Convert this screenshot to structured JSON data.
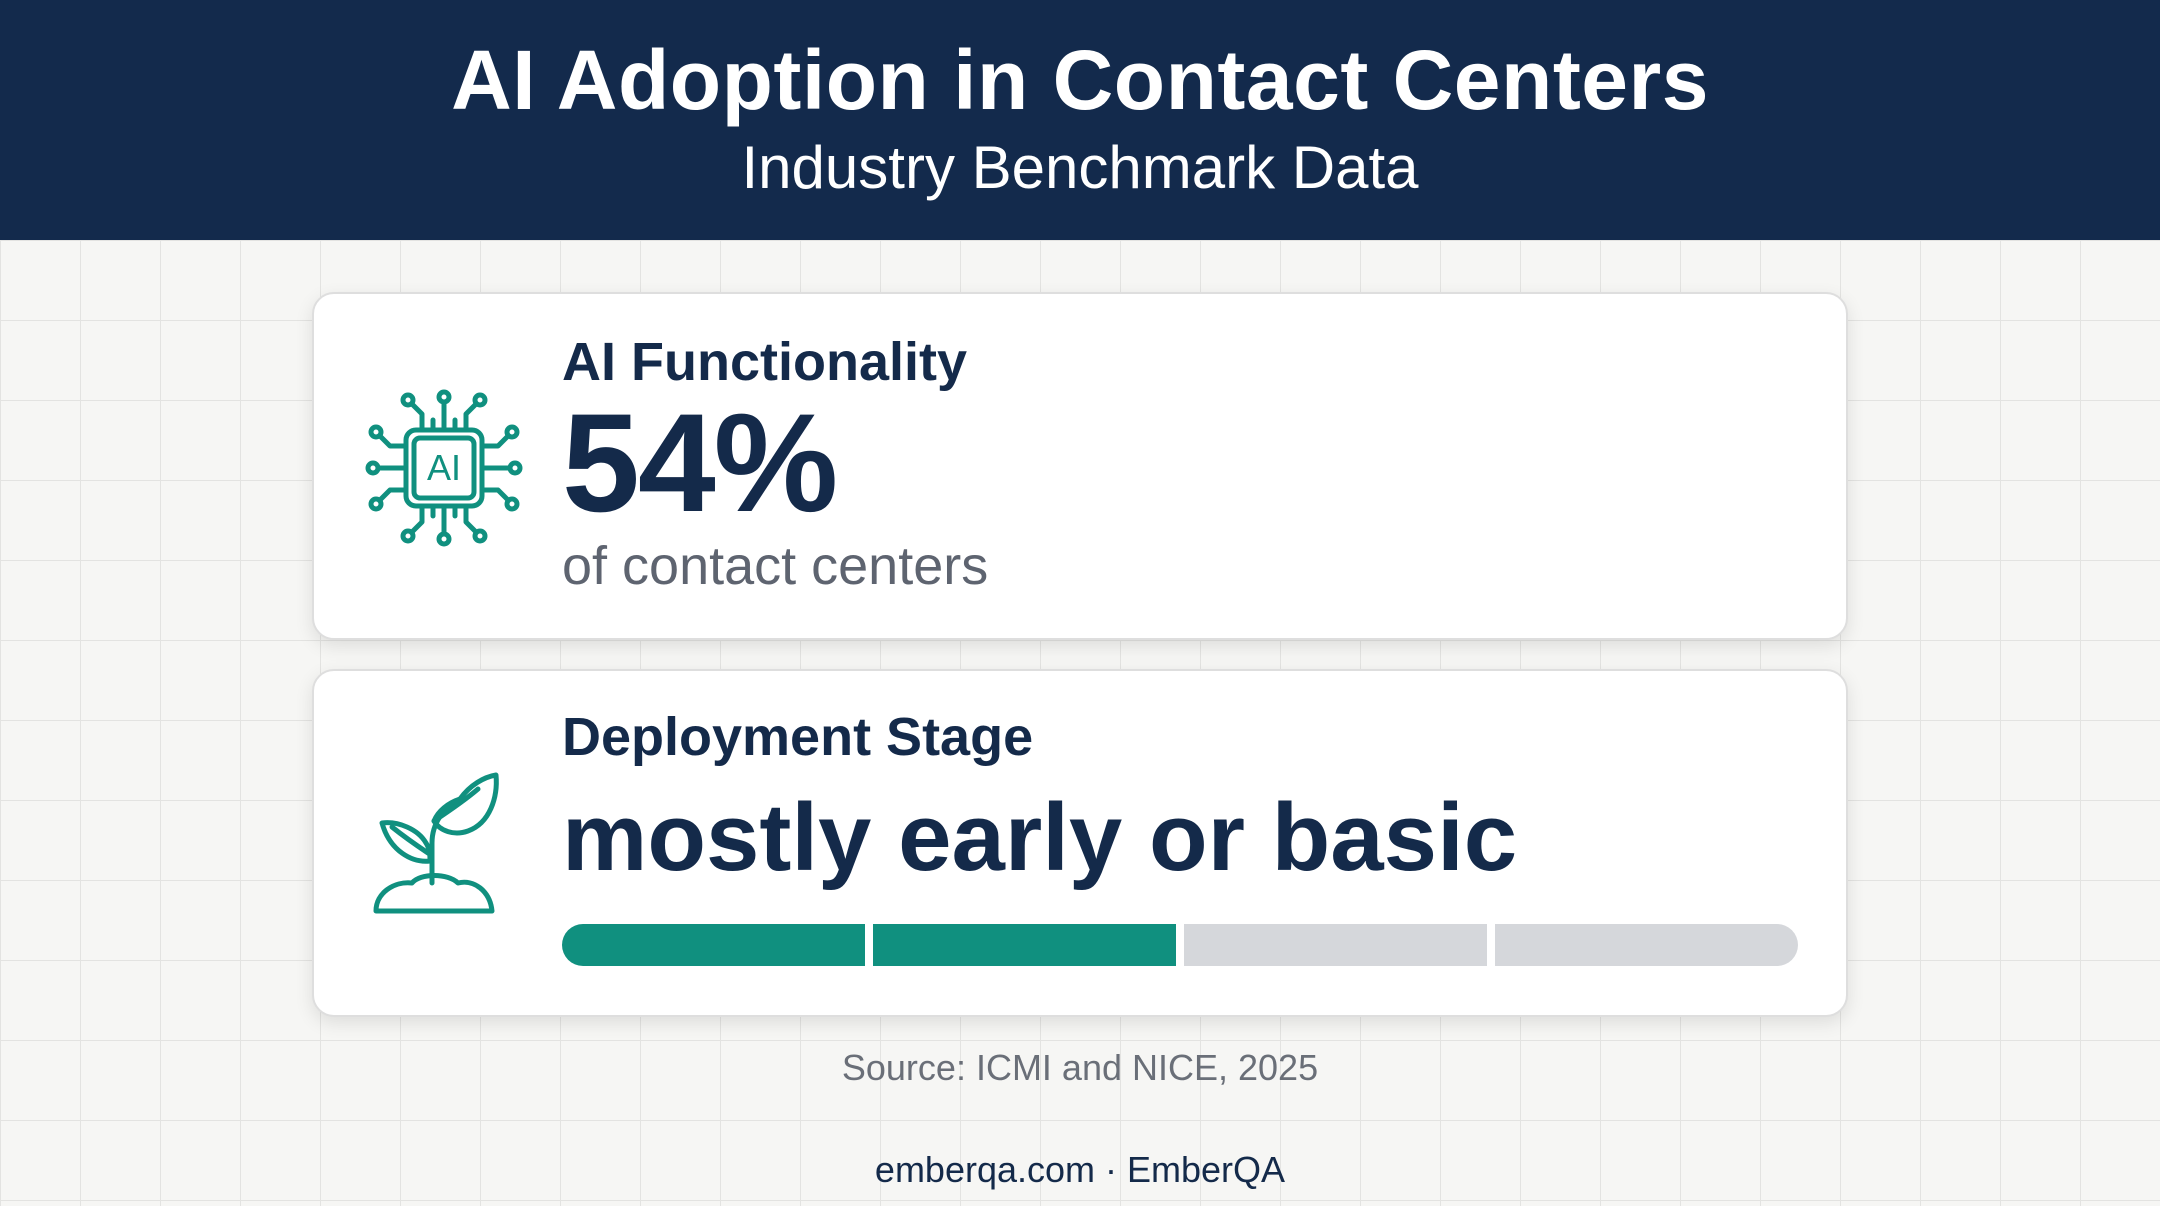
{
  "header": {
    "title": "AI Adoption in Contact Centers",
    "subtitle": "Industry Benchmark Data"
  },
  "cards": [
    {
      "icon": "ai-chip-icon",
      "label": "AI Functionality",
      "value": "54%",
      "caption": "of contact centers"
    },
    {
      "icon": "sprout-icon",
      "label": "Deployment Stage",
      "value": "mostly early or basic",
      "progress": {
        "filled_segments": 2,
        "total_segments": 4
      }
    }
  ],
  "source": "Source: ICMI and NICE, 2025",
  "footer": "emberqa.com · EmberQA",
  "colors": {
    "header_bg": "#132a4c",
    "accent": "#10907f",
    "text_dark": "#142a4a",
    "progress_empty": "#d5d7db"
  }
}
